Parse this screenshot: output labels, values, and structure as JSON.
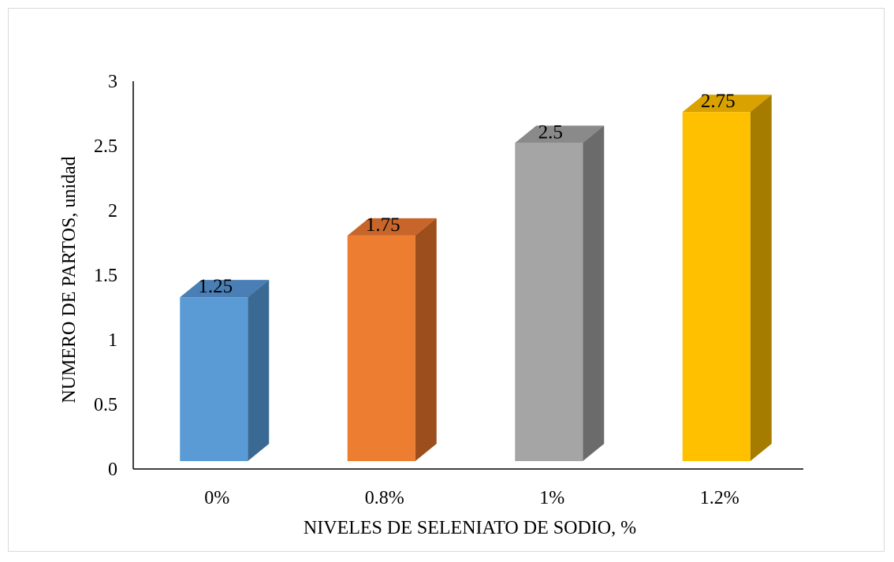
{
  "chart_data": {
    "type": "bar",
    "title": "",
    "xlabel": "NIVELES DE SELENIATO DE SODIO, %",
    "ylabel": "NUMERO DE PARTOS, unidad",
    "categories": [
      "0%",
      "0.8%",
      "1%",
      "1.2%"
    ],
    "values": [
      1.25,
      1.75,
      2.5,
      2.75
    ],
    "data_labels": [
      "1.25",
      "1.75",
      "2.5",
      "2.75"
    ],
    "ylim": [
      0,
      3
    ],
    "yticks": [
      0,
      0.5,
      1,
      1.5,
      2,
      2.5,
      3
    ],
    "ytick_labels": [
      "0",
      "0.5",
      "1",
      "1.5",
      "2",
      "2.5",
      "3"
    ],
    "style": "3d-column",
    "grid": false,
    "legend": "none",
    "colors": [
      {
        "front": "#5b9bd5",
        "side": "#3a6a93",
        "top": "#4a7fb5"
      },
      {
        "front": "#ed7d31",
        "side": "#9c4e1c",
        "top": "#c8652a"
      },
      {
        "front": "#a5a5a5",
        "side": "#6b6b6b",
        "top": "#8a8a8a"
      },
      {
        "front": "#ffc000",
        "side": "#a67c00",
        "top": "#d9a200"
      }
    ]
  }
}
